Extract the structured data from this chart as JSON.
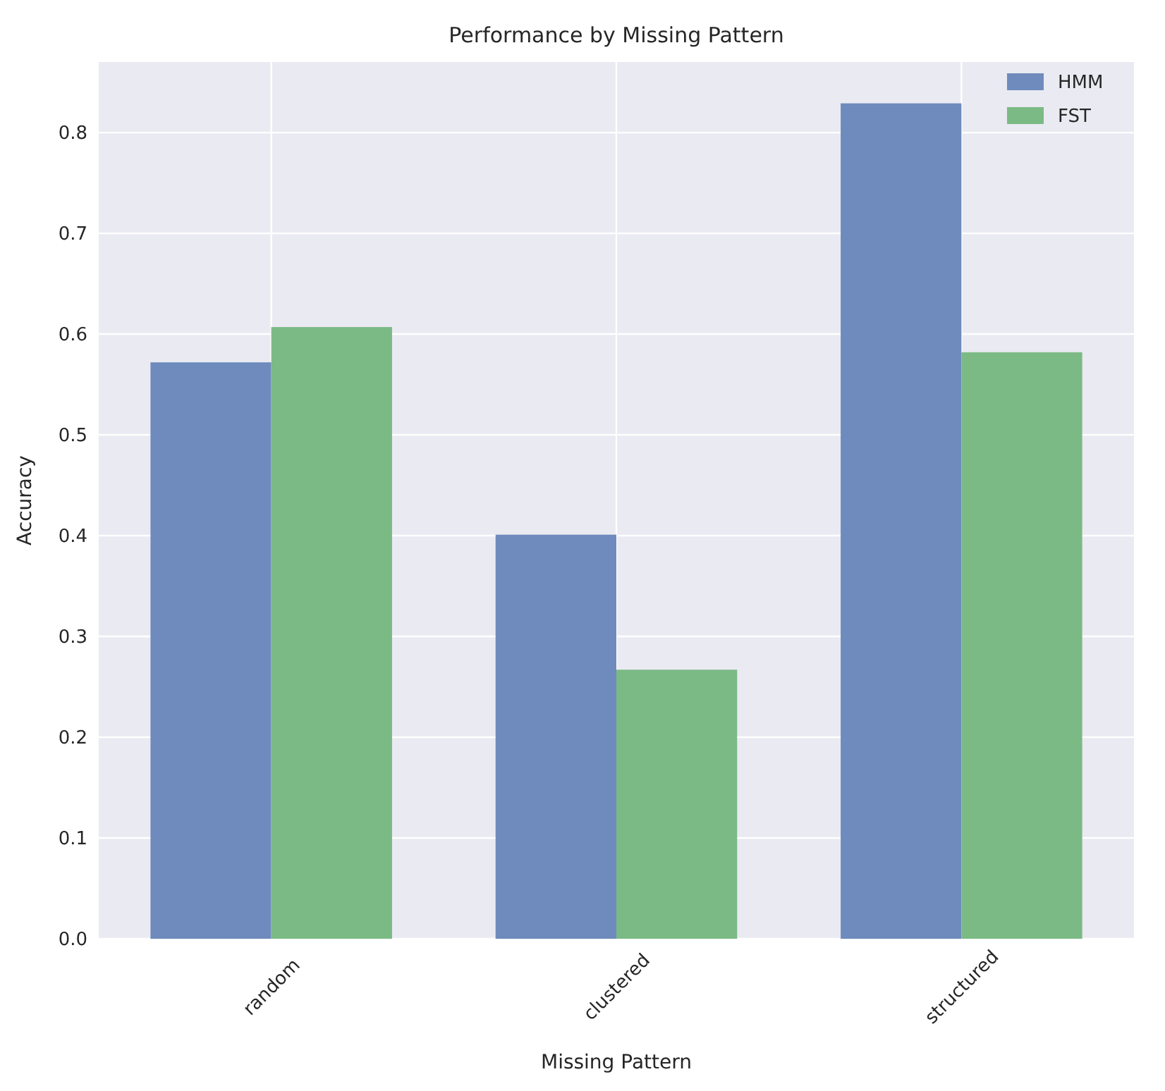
{
  "chart_data": {
    "type": "bar",
    "title": "Performance by Missing Pattern",
    "xlabel": "Missing Pattern",
    "ylabel": "Accuracy",
    "categories": [
      "random",
      "clustered",
      "structured"
    ],
    "series": [
      {
        "name": "HMM",
        "color": "#6f8bbd",
        "values": [
          0.572,
          0.401,
          0.829
        ]
      },
      {
        "name": "FST",
        "color": "#7bba85",
        "values": [
          0.607,
          0.267,
          0.582
        ]
      }
    ],
    "ylim": [
      0,
      0.87
    ],
    "yticks": [
      {
        "value": 0,
        "label": "0.0"
      },
      0.1,
      0.2,
      0.3,
      0.4,
      0.5,
      0.6,
      0.7,
      0.8
    ],
    "grid": true,
    "legend": "top right"
  }
}
